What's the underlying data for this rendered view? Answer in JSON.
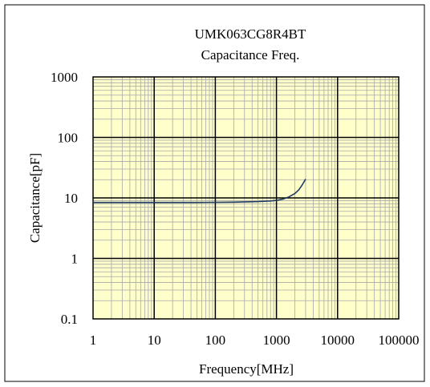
{
  "chart_data": {
    "type": "line",
    "title": "UMK063CG8R4BT",
    "subtitle": "Capacitance Freq.",
    "xlabel": "Frequency[MHz]",
    "ylabel": "Capacitance[pF]",
    "xscale": "log",
    "yscale": "log",
    "xlim": [
      1,
      100000
    ],
    "ylim": [
      0.1,
      1000
    ],
    "xticks": [
      "1",
      "10",
      "100",
      "1000",
      "10000",
      "100000"
    ],
    "yticks": [
      "0.1",
      "1",
      "10",
      "100",
      "1000"
    ],
    "grid": true,
    "legend": "none",
    "plot_background": "#ffffcc",
    "line_color": "#1f3a5f",
    "series": [
      {
        "x": [
          1,
          2,
          5,
          10,
          20,
          50,
          100,
          200,
          500,
          800,
          1000,
          1300,
          1600,
          2000,
          2300,
          2600,
          2800,
          3000
        ],
        "y": [
          8.4,
          8.4,
          8.4,
          8.4,
          8.4,
          8.4,
          8.45,
          8.5,
          8.7,
          8.9,
          9.1,
          9.6,
          10.4,
          11.8,
          13.5,
          16,
          18.2,
          20.5
        ]
      }
    ]
  }
}
